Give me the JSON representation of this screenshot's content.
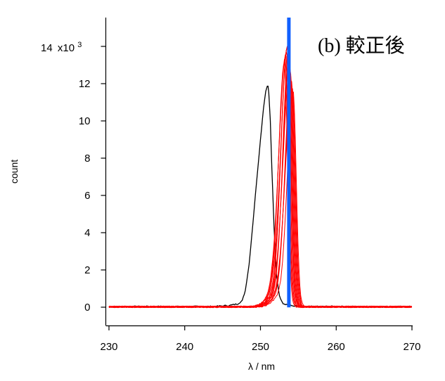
{
  "chart_data": {
    "type": "line",
    "title": "(b)  較正後",
    "xlabel": "λ / nm",
    "ylabel": "count",
    "xlim": [
      230,
      270
    ],
    "ylim": [
      -1000,
      15500
    ],
    "y_multiplier": "x10",
    "y_multiplier_exp": "3",
    "x_ticks": [
      230,
      240,
      250,
      260,
      270
    ],
    "y_ticks": [
      0,
      2,
      4,
      6,
      8,
      10,
      12,
      14
    ],
    "grid": false,
    "legend": "none",
    "series": [
      {
        "color": "#000000",
        "width": 1.3,
        "x": [
          230,
          235,
          240,
          244,
          246,
          247,
          247.6,
          248,
          248.5,
          249,
          249.5,
          250,
          250.4,
          250.7,
          250.9,
          251.0,
          251.1,
          251.3,
          251.5,
          251.8,
          252.1,
          252.5,
          253,
          254,
          256,
          260,
          265,
          270
        ],
        "y": [
          20,
          40,
          30,
          40,
          100,
          180,
          350,
          900,
          2300,
          4500,
          6800,
          9000,
          10700,
          11600,
          11900,
          11850,
          11500,
          10000,
          7500,
          4200,
          1800,
          600,
          200,
          80,
          30,
          40,
          20,
          30
        ]
      },
      {
        "color": "#ff0000",
        "width": 1.0,
        "profile": "peak",
        "centers": [
          253.15,
          253.25,
          253.35,
          253.45,
          253.55,
          253.6,
          253.7,
          253.8,
          253.9,
          254.0,
          254.1,
          254.2,
          254.3
        ],
        "heights": [
          13100,
          13300,
          13500,
          13700,
          13900,
          14000,
          13600,
          13200,
          12800,
          12400,
          12100,
          11800,
          11600
        ]
      },
      {
        "color": "#1060ff",
        "width": 5.0,
        "x": [
          253.75,
          253.75
        ],
        "y": [
          -10,
          15500
        ]
      }
    ]
  }
}
